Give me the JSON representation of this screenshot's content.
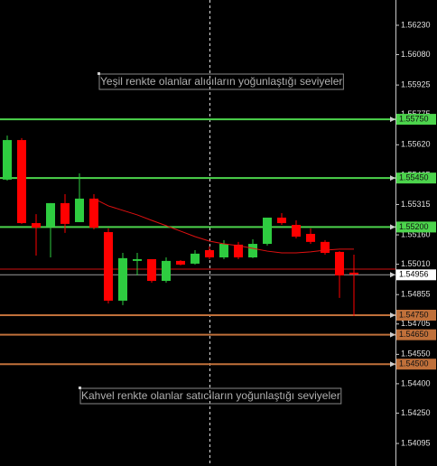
{
  "chart_data": {
    "type": "candlestick",
    "ylim": [
      1.5398,
      1.56359
    ],
    "yticks": [
      {
        "value": 1.5623,
        "label": "1.56230"
      },
      {
        "value": 1.5608,
        "label": "1.56080"
      },
      {
        "value": 1.55925,
        "label": "1.55925"
      },
      {
        "value": 1.55775,
        "label": "1.55775"
      },
      {
        "value": 1.5562,
        "label": "1.55620"
      },
      {
        "value": 1.55465,
        "label": "1.55465"
      },
      {
        "value": 1.55315,
        "label": "1.55315"
      },
      {
        "value": 1.5516,
        "label": "1.55160"
      },
      {
        "value": 1.5501,
        "label": "1.55010"
      },
      {
        "value": 1.54855,
        "label": "1.54855"
      },
      {
        "value": 1.54705,
        "label": "1.54705"
      },
      {
        "value": 1.5455,
        "label": "1.54550"
      },
      {
        "value": 1.544,
        "label": "1.54400"
      },
      {
        "value": 1.5425,
        "label": "1.54250"
      },
      {
        "value": 1.54095,
        "label": "1.54095"
      }
    ],
    "up_color": "#2ecc40",
    "down_color": "#ff0000",
    "open": [
      1.55442,
      1.55644,
      1.5522,
      1.55202,
      1.55322,
      1.55225,
      1.55345,
      1.55174,
      1.54824,
      1.55027,
      1.55036,
      1.54925,
      1.55027,
      1.55013,
      1.55082,
      1.55045,
      1.5511,
      1.55045,
      1.55114,
      1.55248,
      1.55211,
      1.55165,
      1.55124,
      1.55073,
      1.54967
    ],
    "high": [
      1.55667,
      1.55654,
      1.55266,
      1.55322,
      1.55368,
      1.55474,
      1.55368,
      1.55193,
      1.55068,
      1.55068,
      1.55036,
      1.55045,
      1.55031,
      1.55082,
      1.55101,
      1.55133,
      1.55124,
      1.55137,
      1.55248,
      1.55271,
      1.55234,
      1.55193,
      1.55133,
      1.55077,
      1.55059
    ],
    "low": [
      1.55437,
      1.55216,
      1.55054,
      1.55045,
      1.5517,
      1.55225,
      1.55188,
      1.5481,
      1.54801,
      1.54953,
      1.54916,
      1.54916,
      1.55004,
      1.55008,
      1.55036,
      1.55036,
      1.55036,
      1.55041,
      1.55105,
      1.55211,
      1.55142,
      1.55114,
      1.55059,
      1.54838,
      1.54746
    ],
    "close": [
      1.55644,
      1.5522,
      1.55197,
      1.55322,
      1.55216,
      1.55345,
      1.55197,
      1.54824,
      1.55041,
      1.55036,
      1.54925,
      1.55027,
      1.55008,
      1.55064,
      1.55045,
      1.55114,
      1.55045,
      1.55114,
      1.55248,
      1.5522,
      1.55151,
      1.55124,
      1.55068,
      1.54953,
      1.54958
    ],
    "ma": {
      "color": "#e01010",
      "values": [
        null,
        null,
        null,
        null,
        null,
        null,
        1.55345,
        1.55308,
        1.55285,
        1.55262,
        1.55234,
        1.55207,
        1.55179,
        1.55151,
        1.55128,
        1.55114,
        1.55105,
        1.55091,
        1.55077,
        1.55068,
        1.55068,
        1.55073,
        1.55082,
        1.55087,
        1.55087
      ]
    },
    "levels": [
      {
        "value": 1.5575,
        "label": "1.55750",
        "color": "#4cd44c"
      },
      {
        "value": 1.5545,
        "label": "1.55450",
        "color": "#4cd44c"
      },
      {
        "value": 1.552,
        "label": "1.55200",
        "color": "#4cd44c"
      },
      {
        "value": 1.5475,
        "label": "1.54750",
        "color": "#c0703a"
      },
      {
        "value": 1.5465,
        "label": "1.54650",
        "color": "#c0703a"
      },
      {
        "value": 1.545,
        "label": "1.54500",
        "color": "#c0703a"
      }
    ],
    "ask_line": {
      "value": 1.54985,
      "color": "#d01010"
    },
    "current_price": {
      "value": 1.54956,
      "label": "1.54956"
    },
    "annotations": [
      {
        "text": "Yeşil renkte olanlar alıcıların yoğunlaştığı seviyeler"
      },
      {
        "text": "Kahvel renkte olanlar satıcıların yoğunlaştığı seviyeler"
      }
    ]
  }
}
